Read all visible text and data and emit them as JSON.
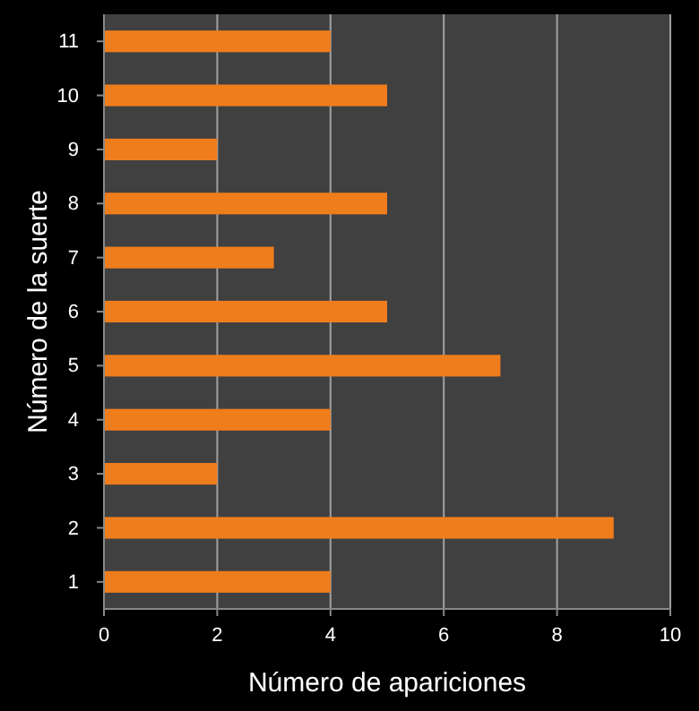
{
  "chart_data": {
    "type": "bar",
    "orientation": "horizontal",
    "xlabel": "Número de apariciones",
    "ylabel": "Número de la suerte",
    "categories": [
      "11",
      "10",
      "9",
      "8",
      "7",
      "6",
      "5",
      "4",
      "3",
      "2",
      "1"
    ],
    "values": [
      4,
      5,
      2,
      5,
      3,
      5,
      7,
      4,
      2,
      9,
      4
    ],
    "color": "#f07d1c",
    "xlim": [
      0,
      10
    ],
    "xticks": [
      0,
      2,
      4,
      6,
      8,
      10
    ],
    "grid": "x"
  }
}
